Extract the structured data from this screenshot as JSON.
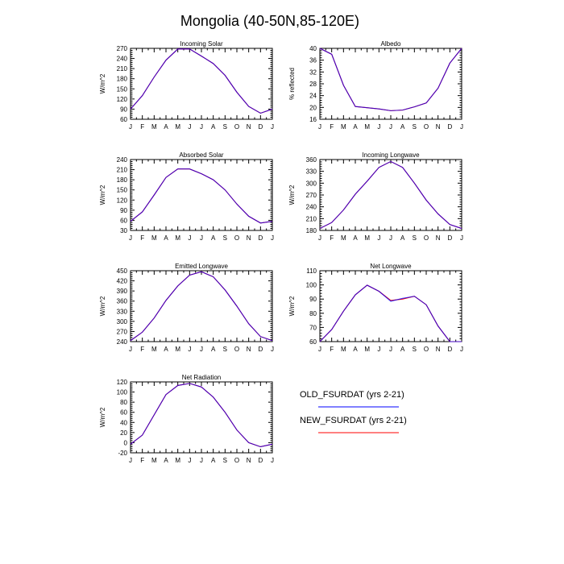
{
  "title": "Mongolia (40-50N,85-120E)",
  "months": [
    "J",
    "F",
    "M",
    "A",
    "M",
    "J",
    "J",
    "A",
    "S",
    "O",
    "N",
    "D",
    "J"
  ],
  "legend": {
    "entries": [
      {
        "label": "OLD_FSURDAT (yrs 2-21)",
        "color": "#0000ff"
      },
      {
        "label": "NEW_FSURDAT (yrs 2-21)",
        "color": "#ff0000"
      }
    ]
  },
  "chart_data": [
    {
      "type": "line",
      "title": "Incoming Solar",
      "ylabel": "W/m^2",
      "ylim": [
        60,
        270
      ],
      "yticks": [
        60,
        90,
        120,
        150,
        180,
        210,
        240,
        270
      ],
      "series": [
        {
          "name": "OLD_FSURDAT (yrs 2-21)",
          "color": "#0000ff",
          "values": [
            90,
            130,
            185,
            235,
            268,
            268,
            247,
            225,
            190,
            140,
            98,
            78,
            90
          ]
        },
        {
          "name": "NEW_FSURDAT (yrs 2-21)",
          "color": "#ff0000",
          "values": [
            90,
            130,
            185,
            235,
            268,
            268,
            247,
            225,
            190,
            140,
            98,
            78,
            90
          ]
        }
      ]
    },
    {
      "type": "line",
      "title": "Albedo",
      "ylabel": "% reflected",
      "ylim": [
        16,
        40
      ],
      "yticks": [
        16,
        20,
        24,
        28,
        32,
        36,
        40
      ],
      "series": [
        {
          "name": "OLD_FSURDAT (yrs 2-21)",
          "color": "#0000ff",
          "values": [
            40,
            38,
            27.5,
            20.3,
            19.9,
            19.5,
            18.9,
            19.1,
            20.2,
            21.5,
            26.5,
            35,
            40
          ]
        },
        {
          "name": "NEW_FSURDAT (yrs 2-21)",
          "color": "#ff0000",
          "values": [
            40,
            38,
            27.5,
            20.3,
            19.9,
            19.5,
            18.9,
            19.1,
            20.2,
            21.5,
            26.5,
            35,
            40
          ]
        }
      ]
    },
    {
      "type": "line",
      "title": "Absorbed Solar",
      "ylabel": "W/m^2",
      "ylim": [
        30,
        240
      ],
      "yticks": [
        30,
        60,
        90,
        120,
        150,
        180,
        210,
        240
      ],
      "series": [
        {
          "name": "OLD_FSURDAT (yrs 2-21)",
          "color": "#0000ff",
          "values": [
            57,
            85,
            135,
            187,
            212,
            212,
            198,
            180,
            150,
            108,
            72,
            52,
            57
          ]
        },
        {
          "name": "NEW_FSURDAT (yrs 2-21)",
          "color": "#ff0000",
          "values": [
            57,
            85,
            135,
            187,
            212,
            212,
            198,
            180,
            150,
            108,
            72,
            52,
            57
          ]
        }
      ]
    },
    {
      "type": "line",
      "title": "Incoming Longwave",
      "ylabel": "W/m^2",
      "ylim": [
        180,
        360
      ],
      "yticks": [
        180,
        210,
        240,
        270,
        300,
        330,
        360
      ],
      "series": [
        {
          "name": "OLD_FSURDAT (yrs 2-21)",
          "color": "#0000ff",
          "values": [
            185,
            200,
            232,
            272,
            305,
            340,
            355,
            340,
            300,
            257,
            222,
            195,
            185
          ]
        },
        {
          "name": "NEW_FSURDAT (yrs 2-21)",
          "color": "#ff0000",
          "values": [
            185,
            200,
            232,
            272,
            305,
            340,
            355,
            340,
            300,
            257,
            222,
            195,
            185
          ]
        }
      ]
    },
    {
      "type": "line",
      "title": "Emitted Longwave",
      "ylabel": "W/m^2",
      "ylim": [
        240,
        450
      ],
      "yticks": [
        240,
        270,
        300,
        330,
        360,
        390,
        420,
        450
      ],
      "series": [
        {
          "name": "OLD_FSURDAT (yrs 2-21)",
          "color": "#0000ff",
          "values": [
            243,
            268,
            310,
            362,
            405,
            437,
            447,
            432,
            393,
            345,
            293,
            255,
            243
          ]
        },
        {
          "name": "NEW_FSURDAT (yrs 2-21)",
          "color": "#ff0000",
          "values": [
            243,
            268,
            310,
            362,
            405,
            437,
            447,
            432,
            393,
            345,
            293,
            255,
            243
          ]
        }
      ]
    },
    {
      "type": "line",
      "title": "Net Longwave",
      "ylabel": "W/m^2",
      "ylim": [
        60,
        110
      ],
      "yticks": [
        60,
        70,
        80,
        90,
        100,
        110
      ],
      "series": [
        {
          "name": "OLD_FSURDAT (yrs 2-21)",
          "color": "#0000ff",
          "values": [
            60,
            68.5,
            81.5,
            93,
            99.8,
            95.5,
            88.5,
            90.5,
            92,
            86,
            71,
            60,
            60
          ]
        },
        {
          "name": "NEW_FSURDAT (yrs 2-21)",
          "color": "#ff0000",
          "values": [
            60,
            68.5,
            81.5,
            93,
            99.8,
            95.5,
            89,
            90,
            92,
            86,
            71,
            60,
            60
          ]
        }
      ]
    },
    {
      "type": "line",
      "title": "Net Radiation",
      "ylabel": "W/m^2",
      "ylim": [
        -20,
        120
      ],
      "yticks": [
        -20,
        0,
        20,
        40,
        60,
        80,
        100,
        120
      ],
      "series": [
        {
          "name": "OLD_FSURDAT (yrs 2-21)",
          "color": "#0000ff",
          "values": [
            -3,
            15,
            55,
            95,
            113,
            117,
            110,
            90,
            60,
            25,
            0,
            -8,
            -3
          ]
        },
        {
          "name": "NEW_FSURDAT (yrs 2-21)",
          "color": "#ff0000",
          "values": [
            -3,
            15,
            55,
            95,
            113,
            117,
            110,
            90,
            60,
            25,
            0,
            -8,
            -3
          ]
        }
      ]
    }
  ]
}
